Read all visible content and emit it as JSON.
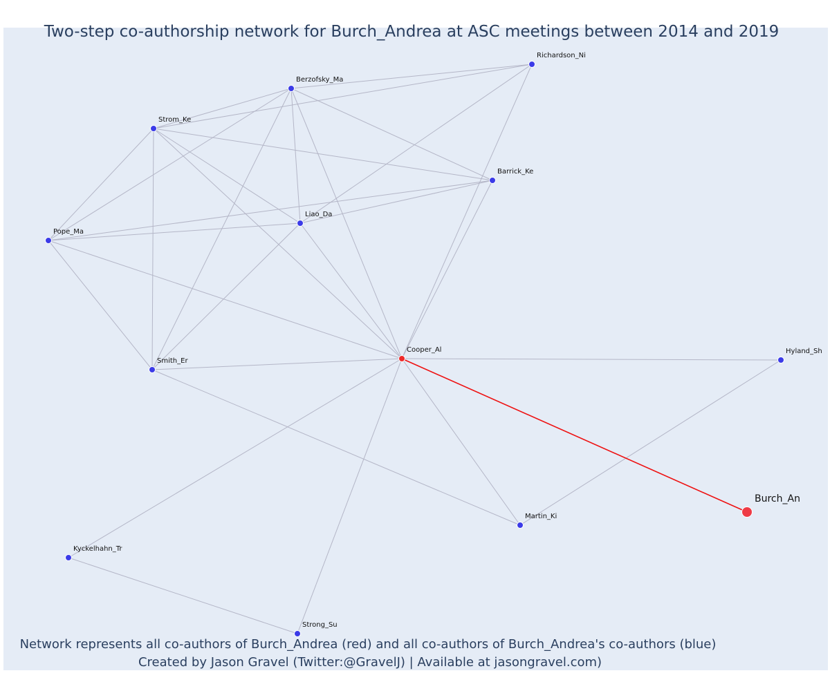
{
  "title": "Two-step co-authorship network for Burch_Andrea at ASC meetings between 2014 and 2019",
  "caption_line1": "Network represents all co-authors of Burch_Andrea (red) and all co-authors of Burch_Andrea's co-authors (blue)",
  "caption_line2": "Created by Jason Gravel (Twitter:@GravelJ) | Available at jasongravel.com)",
  "colors": {
    "background": "#e5ecf6",
    "edge": "#b4b6c7",
    "focus_edge": "#ee1111",
    "coauthor_node": "#ee2a2a",
    "second_step_node": "#3b3be8",
    "focus_node": "#ee3b46",
    "title": "#2a3f5f"
  },
  "nodes": [
    {
      "id": "richardson",
      "label": "Richardson_Ni",
      "role": "second-step"
    },
    {
      "id": "berzofsky",
      "label": "Berzofsky_Ma",
      "role": "second-step"
    },
    {
      "id": "strom",
      "label": "Strom_Ke",
      "role": "second-step"
    },
    {
      "id": "barrick",
      "label": "Barrick_Ke",
      "role": "second-step"
    },
    {
      "id": "liao",
      "label": "Liao_Da",
      "role": "second-step"
    },
    {
      "id": "pope",
      "label": "Pope_Ma",
      "role": "second-step"
    },
    {
      "id": "cooper",
      "label": "Cooper_Al",
      "role": "coauthor"
    },
    {
      "id": "hyland",
      "label": "Hyland_Sh",
      "role": "second-step"
    },
    {
      "id": "smith",
      "label": "Smith_Er",
      "role": "second-step"
    },
    {
      "id": "burch",
      "label": "Burch_An",
      "role": "focus"
    },
    {
      "id": "martin",
      "label": "Martin_Ki",
      "role": "second-step"
    },
    {
      "id": "kyckelhahn",
      "label": "Kyckelhahn_Tr",
      "role": "second-step"
    },
    {
      "id": "strong",
      "label": "Strong_Su",
      "role": "second-step"
    }
  ],
  "edges": [
    [
      "berzofsky",
      "richardson"
    ],
    [
      "strom",
      "richardson"
    ],
    [
      "strom",
      "berzofsky"
    ],
    [
      "pope",
      "berzofsky"
    ],
    [
      "smith",
      "berzofsky"
    ],
    [
      "liao",
      "berzofsky"
    ],
    [
      "cooper",
      "berzofsky"
    ],
    [
      "barrick",
      "berzofsky"
    ],
    [
      "pope",
      "strom"
    ],
    [
      "smith",
      "strom"
    ],
    [
      "liao",
      "strom"
    ],
    [
      "cooper",
      "strom"
    ],
    [
      "barrick",
      "strom"
    ],
    [
      "pope",
      "barrick"
    ],
    [
      "liao",
      "barrick"
    ],
    [
      "cooper",
      "barrick"
    ],
    [
      "pope",
      "liao"
    ],
    [
      "smith",
      "liao"
    ],
    [
      "cooper",
      "liao"
    ],
    [
      "liao",
      "richardson"
    ],
    [
      "cooper",
      "richardson"
    ],
    [
      "smith",
      "pope"
    ],
    [
      "cooper",
      "pope"
    ],
    [
      "cooper",
      "smith"
    ],
    [
      "smith",
      "martin"
    ],
    [
      "cooper",
      "hyland"
    ],
    [
      "hyland",
      "martin"
    ],
    [
      "cooper",
      "martin"
    ],
    [
      "cooper",
      "kyckelhahn"
    ],
    [
      "cooper",
      "strong"
    ],
    [
      "kyckelhahn",
      "strong"
    ]
  ],
  "focus_edges": [
    [
      "cooper",
      "burch"
    ]
  ]
}
